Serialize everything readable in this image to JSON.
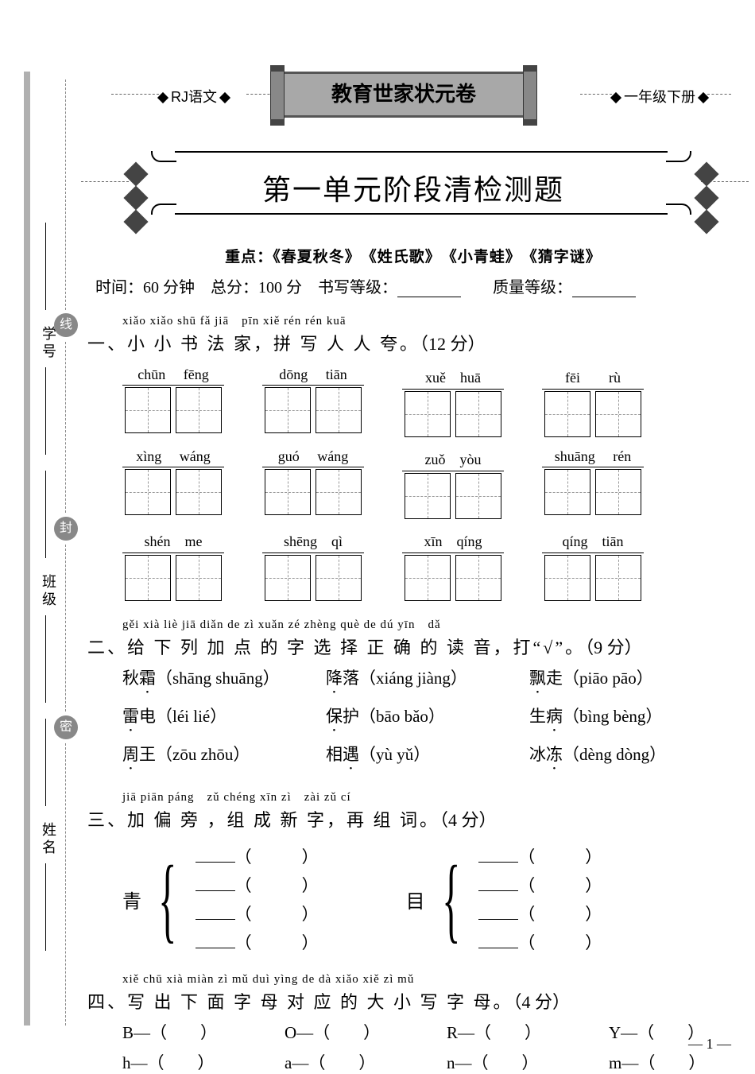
{
  "header": {
    "left_label": "RJ语文",
    "banner": "教育世家状元卷",
    "right_label": "一年级下册"
  },
  "main_title": "第一单元阶段清检测题",
  "focus": {
    "label": "重点",
    "items": [
      "《春夏秋冬》",
      "《姓氏歌》",
      "《小青蛙》",
      "《猜字谜》"
    ]
  },
  "info": {
    "time_label": "时间",
    "time_value": "60 分钟",
    "total_label": "总分",
    "total_value": "100 分",
    "writing_label": "书写等级：",
    "quality_label": "质量等级："
  },
  "side": {
    "labels": [
      "学号",
      "班级",
      "姓名"
    ],
    "circles": [
      "线",
      "封",
      "密"
    ]
  },
  "q1": {
    "pinyin": "xiǎo xiǎo shū fǎ jiā　pīn xiě rén rén kuā",
    "title_cn": "一、小 小 书 法 家，拼 写 人 人 夸。",
    "points": "（12 分）",
    "rows": [
      [
        {
          "py": "chūn fēng"
        },
        {
          "py": "dōng tiān"
        },
        {
          "py": "xuě　huā"
        },
        {
          "py": "fēi　　rù"
        }
      ],
      [
        {
          "py": "xìng wáng"
        },
        {
          "py": "guó wáng"
        },
        {
          "py": "zuǒ　yòu"
        },
        {
          "py": "shuāng rén"
        }
      ],
      [
        {
          "py": "shén　me"
        },
        {
          "py": "shēng　qì"
        },
        {
          "py": "xīn　qíng"
        },
        {
          "py": "qíng　tiān"
        }
      ]
    ]
  },
  "q2": {
    "pinyin": "gěi xià liè jiā diǎn de zì xuǎn zé zhèng què de dú yīn　dǎ",
    "title_cn": "二、给 下 列 加 点 的 字 选 择 正 确 的 读 音，打“√”。",
    "points": "（9 分）",
    "rows": [
      [
        {
          "word": "秋",
          "dot": "霜",
          "paren": "（shāng shuāng）"
        },
        {
          "word": "",
          "dot": "降",
          "post": "落",
          "paren": "（xiáng jiàng）"
        },
        {
          "word": "",
          "dot": "飘",
          "post": "走",
          "paren": "（piāo pāo）"
        }
      ],
      [
        {
          "word": "",
          "dot": "雷",
          "post": "电",
          "paren": "（léi lié）"
        },
        {
          "word": "",
          "dot": "保",
          "post": "护",
          "paren": "（bāo bǎo）"
        },
        {
          "word": "生",
          "dot": "病",
          "paren": "（bìng bèng）"
        }
      ],
      [
        {
          "word": "",
          "dot": "周",
          "post": "王",
          "paren": "（zōu zhōu）"
        },
        {
          "word": "相",
          "dot": "遇",
          "paren": "（yù yǔ）"
        },
        {
          "word": "冰",
          "dot": "冻",
          "paren": "（dèng dòng）"
        }
      ]
    ]
  },
  "q3": {
    "pinyin": "jiā piān páng　zǔ chéng xīn zì　zài zǔ cí",
    "title_cn": "三、加 偏 旁 ，组 成 新 字，再 组 词。",
    "points": "（4 分）",
    "groups": [
      {
        "base": "青",
        "lines": 4
      },
      {
        "base": "目",
        "lines": 4
      }
    ]
  },
  "q4": {
    "pinyin": "xiě chū xià miàn zì mǔ duì yìng de dà xiǎo xiě zì mǔ",
    "title_cn": "四、写 出 下 面 字 母 对 应 的 大 小 写 字 母。",
    "points": "（4 分）",
    "rows": [
      [
        "B",
        "O",
        "R",
        "Y"
      ],
      [
        "h",
        "a",
        "n",
        "m"
      ]
    ]
  },
  "page_num": "— 1 —"
}
